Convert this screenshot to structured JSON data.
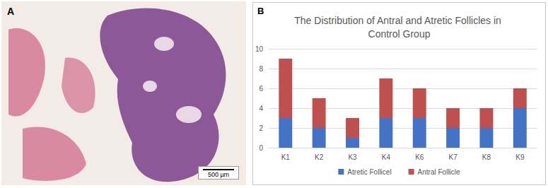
{
  "panels": [
    {
      "label": "A",
      "scale_bar": "500 µm"
    },
    {
      "label": "B"
    }
  ],
  "chart_data": {
    "type": "bar",
    "stacked": true,
    "title": "The Distribution of Antral and Atretic Follicles in Control Group",
    "categories": [
      "K1",
      "K2",
      "K3",
      "K4",
      "K6",
      "K7",
      "K8",
      "K9"
    ],
    "series": [
      {
        "name": "Atretic Follicel",
        "color": "#4472c4",
        "values": [
          3,
          2,
          1,
          3,
          3,
          2,
          2,
          4
        ]
      },
      {
        "name": "Antral Follicle",
        "color": "#c0504d",
        "values": [
          6,
          3,
          2,
          4,
          3,
          2,
          2,
          2
        ]
      }
    ],
    "ylim": [
      0,
      10
    ],
    "yticks": [
      0,
      2,
      4,
      6,
      8,
      10
    ],
    "grid": true,
    "legend": "bottom"
  }
}
